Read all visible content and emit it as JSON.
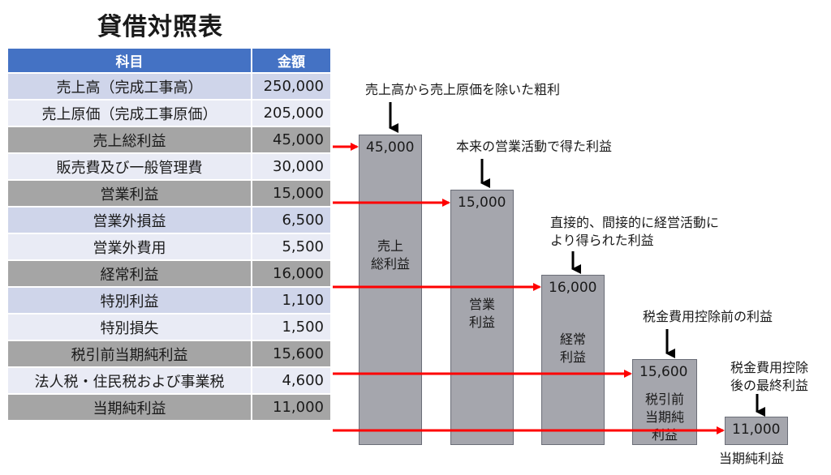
{
  "title": "貸借対照表",
  "table": {
    "headers": [
      "科目",
      "金額"
    ],
    "rows": [
      {
        "name": "売上高（完成工事高）",
        "amount": "250,000",
        "style": "odd"
      },
      {
        "name": "売上原価（完成工事原価）",
        "amount": "205,000",
        "style": "even"
      },
      {
        "name": "売上総利益",
        "amount": "45,000",
        "style": "hl"
      },
      {
        "name": "販売費及び一般管理費",
        "amount": "30,000",
        "style": "even"
      },
      {
        "name": "営業利益",
        "amount": "15,000",
        "style": "hl"
      },
      {
        "name": "営業外損益",
        "amount": "6,500",
        "style": "odd"
      },
      {
        "name": "営業外費用",
        "amount": "5,500",
        "style": "even"
      },
      {
        "name": "経常利益",
        "amount": "16,000",
        "style": "hl"
      },
      {
        "name": "特別利益",
        "amount": "1,100",
        "style": "odd"
      },
      {
        "name": "特別損失",
        "amount": "1,500",
        "style": "even"
      },
      {
        "name": "税引前当期純利益",
        "amount": "15,600",
        "style": "hl"
      },
      {
        "name": "法人税・住民税および事業税",
        "amount": "4,600",
        "style": "even"
      },
      {
        "name": "当期純利益",
        "amount": "11,000",
        "style": "hl"
      }
    ]
  },
  "bars": [
    {
      "value": "45,000",
      "label": "売上\n総利益"
    },
    {
      "value": "15,000",
      "label": "営業\n利益"
    },
    {
      "value": "16,000",
      "label": "経常\n利益"
    },
    {
      "value": "15,600",
      "label": "税引前\n当期純\n利益"
    },
    {
      "value": "11,000",
      "label": ""
    }
  ],
  "annotations": [
    "売上高から売上原価を除いた粗利",
    "本来の営業活動で得た利益",
    "直接的、間接的に経営活動に\nより得られた利益",
    "税金費用控除前の利益",
    "税金費用控除\n後の最終利益"
  ],
  "bottom_label": "当期純利益",
  "colors": {
    "header": "#4472c4",
    "arrow": "#ff0000",
    "bar": "#a5a6ad"
  }
}
